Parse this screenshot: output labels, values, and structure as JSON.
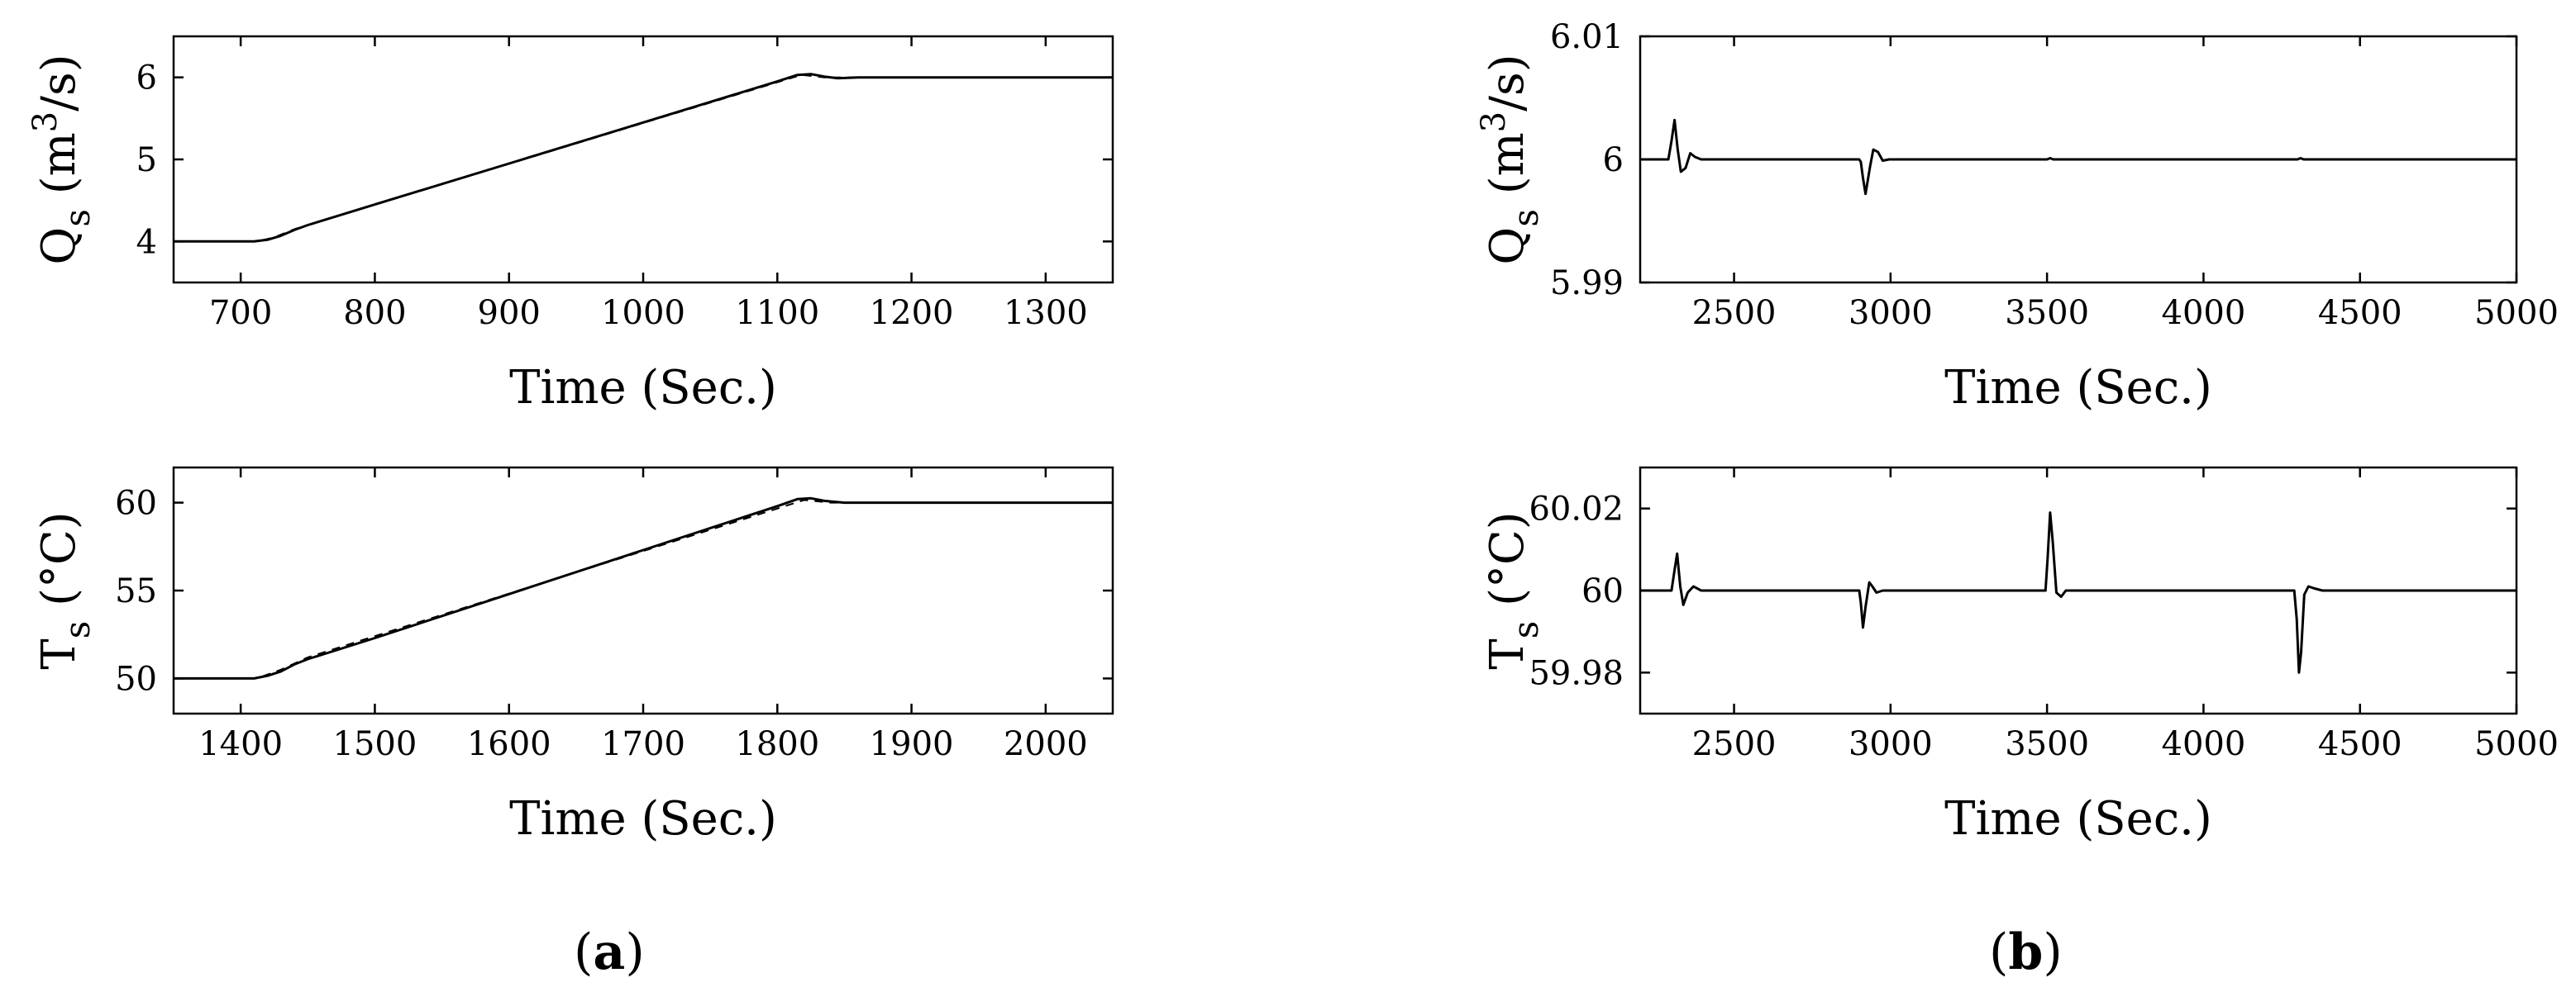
{
  "panel_labels": [
    {
      "open": "(",
      "letter": "a",
      "close": ")"
    },
    {
      "open": "(",
      "letter": "b",
      "close": ")"
    }
  ],
  "chart_data": [
    {
      "id": "a-top",
      "type": "line",
      "xlabel": "Time (Sec.)",
      "ylabel": {
        "sym": "Q",
        "sub": "s",
        "unit_pre": " (m",
        "sup": "3",
        "unit_post": "/s)"
      },
      "xlim": [
        650,
        1350
      ],
      "ylim": [
        3.5,
        6.5
      ],
      "xticks": [
        700,
        800,
        900,
        1000,
        1100,
        1200,
        1300
      ],
      "yticks": [
        4,
        5,
        6
      ],
      "ytick_labels": [
        "4",
        "5",
        "6"
      ],
      "series": [
        {
          "style": "solid",
          "x": [
            650,
            710,
            720,
            730,
            740,
            750,
            800,
            900,
            1000,
            1100,
            1115,
            1125,
            1135,
            1145,
            1160,
            1350
          ],
          "y": [
            4.0,
            4.0,
            4.02,
            4.07,
            4.14,
            4.2,
            4.45,
            4.95,
            5.45,
            5.95,
            6.03,
            6.04,
            6.01,
            5.99,
            6.0,
            6.0
          ]
        },
        {
          "style": "dashed",
          "x": [
            650,
            712,
            725,
            740,
            1118,
            1135,
            1350
          ],
          "y": [
            4.0,
            4.0,
            4.05,
            4.15,
            6.03,
            6.0,
            6.0
          ]
        }
      ]
    },
    {
      "id": "a-bottom",
      "type": "line",
      "xlabel": "Time (Sec.)",
      "ylabel": {
        "sym": "T",
        "sub": "s",
        "unit_pre": " (°C)",
        "sup": "",
        "unit_post": ""
      },
      "xlim": [
        1350,
        2050
      ],
      "ylim": [
        48,
        62
      ],
      "xticks": [
        1400,
        1500,
        1600,
        1700,
        1800,
        1900,
        2000
      ],
      "yticks": [
        50,
        55,
        60
      ],
      "ytick_labels": [
        "50",
        "55",
        "60"
      ],
      "series": [
        {
          "style": "solid",
          "x": [
            1350,
            1410,
            1420,
            1430,
            1440,
            1450,
            1500,
            1600,
            1700,
            1800,
            1815,
            1825,
            1835,
            1850,
            2050
          ],
          "y": [
            50.0,
            50.0,
            50.15,
            50.4,
            50.8,
            51.1,
            52.3,
            54.8,
            57.3,
            59.8,
            60.2,
            60.25,
            60.1,
            60.0,
            60.0
          ]
        },
        {
          "style": "dashed",
          "x": [
            1350,
            1412,
            1430,
            1450,
            1820,
            1840,
            2050
          ],
          "y": [
            50.0,
            50.0,
            50.5,
            51.2,
            60.15,
            60.0,
            60.0
          ]
        }
      ]
    },
    {
      "id": "b-top",
      "type": "line",
      "xlabel": "Time (Sec.)",
      "ylabel": {
        "sym": "Q",
        "sub": "s",
        "unit_pre": " (m",
        "sup": "3",
        "unit_post": "/s)"
      },
      "xlim": [
        2200,
        5000
      ],
      "ylim": [
        5.99,
        6.01
      ],
      "xticks": [
        2500,
        3000,
        3500,
        4000,
        4500,
        5000
      ],
      "yticks": [
        5.99,
        6.0,
        6.01
      ],
      "ytick_labels": [
        "5.99",
        "6",
        "6.01"
      ],
      "series": [
        {
          "style": "solid",
          "x": [
            2200,
            2290,
            2300,
            2310,
            2320,
            2330,
            2345,
            2360,
            2375,
            2395,
            2900,
            2905,
            2912,
            2920,
            2935,
            2945,
            2960,
            2975,
            2995,
            3500,
            3510,
            3520,
            4300,
            4310,
            4320,
            5000
          ],
          "y": [
            6.0,
            6.0,
            6.0015,
            6.0032,
            6.0008,
            5.999,
            5.9993,
            6.0005,
            6.0002,
            6.0,
            6.0,
            5.9998,
            5.9985,
            5.9972,
            5.9995,
            6.0008,
            6.0006,
            5.9999,
            6.0,
            6.0,
            6.0001,
            6.0,
            6.0,
            6.0001,
            6.0,
            6.0
          ]
        }
      ]
    },
    {
      "id": "b-bottom",
      "type": "line",
      "xlabel": "Time (Sec.)",
      "ylabel": {
        "sym": "T",
        "sub": "s",
        "unit_pre": " (°C)",
        "sup": "",
        "unit_post": ""
      },
      "xlim": [
        2200,
        5000
      ],
      "ylim": [
        59.97,
        60.03
      ],
      "xticks": [
        2500,
        3000,
        3500,
        4000,
        4500,
        5000
      ],
      "yticks": [
        59.98,
        60.0,
        60.02
      ],
      "ytick_labels": [
        "59.98",
        "60",
        "60.02"
      ],
      "series": [
        {
          "style": "solid",
          "x": [
            2200,
            2300,
            2310,
            2318,
            2328,
            2338,
            2352,
            2370,
            2395,
            2900,
            2905,
            2912,
            2920,
            2932,
            2942,
            2955,
            2975,
            3495,
            3502,
            3510,
            3518,
            3530,
            3545,
            3560,
            3580,
            4290,
            4298,
            4305,
            4312,
            4322,
            4335,
            4355,
            4380,
            5000
          ],
          "y": [
            60.0,
            60.0,
            60.005,
            60.009,
            60.001,
            59.9965,
            59.9995,
            60.001,
            60.0,
            60.0,
            59.997,
            59.991,
            59.996,
            60.002,
            60.001,
            59.9995,
            60.0,
            60.0,
            60.008,
            60.019,
            60.012,
            59.9995,
            59.9985,
            60.0,
            60.0,
            60.0,
            59.993,
            59.98,
            59.985,
            59.999,
            60.001,
            60.0005,
            60.0,
            60.0
          ]
        }
      ]
    }
  ]
}
